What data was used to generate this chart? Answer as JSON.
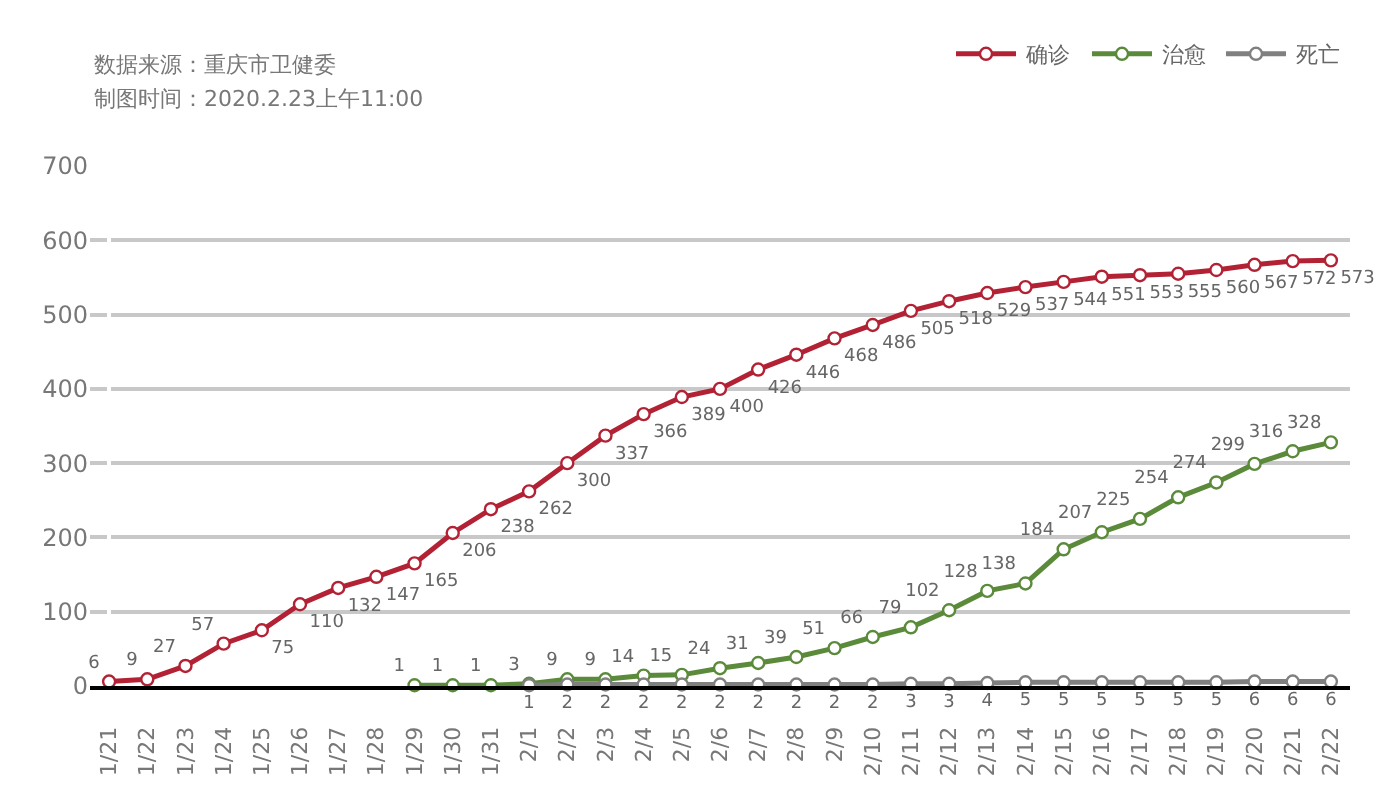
{
  "chart_data": {
    "type": "line",
    "annotations": [
      "数据来源：重庆市卫健委",
      "制图时间：2020.2.23上午11:00"
    ],
    "categories": [
      "1/21",
      "1/22",
      "1/23",
      "1/24",
      "1/25",
      "1/26",
      "1/27",
      "1/28",
      "1/29",
      "1/30",
      "1/31",
      "2/1",
      "2/2",
      "2/3",
      "2/4",
      "2/5",
      "2/6",
      "2/7",
      "2/8",
      "2/9",
      "2/10",
      "2/11",
      "2/12",
      "2/13",
      "2/14",
      "2/15",
      "2/16",
      "2/17",
      "2/18",
      "2/19",
      "2/20",
      "2/21",
      "2/22"
    ],
    "series": [
      {
        "name": "确诊",
        "color": "#b22234",
        "values": [
          6,
          9,
          27,
          57,
          75,
          110,
          132,
          147,
          165,
          206,
          238,
          262,
          300,
          337,
          366,
          389,
          400,
          426,
          446,
          468,
          486,
          505,
          518,
          529,
          537,
          544,
          551,
          553,
          555,
          560,
          567,
          572,
          573
        ]
      },
      {
        "name": "治愈",
        "color": "#5a8a3a",
        "values": [
          null,
          null,
          null,
          null,
          null,
          null,
          null,
          null,
          1,
          1,
          1,
          3,
          9,
          9,
          14,
          15,
          24,
          31,
          39,
          51,
          66,
          79,
          102,
          128,
          138,
          184,
          207,
          225,
          254,
          274,
          299,
          316,
          328
        ]
      },
      {
        "name": "死亡",
        "color": "#808080",
        "values": [
          null,
          null,
          null,
          null,
          null,
          null,
          null,
          null,
          null,
          null,
          null,
          1,
          2,
          2,
          2,
          2,
          2,
          2,
          2,
          2,
          2,
          3,
          3,
          4,
          5,
          5,
          5,
          5,
          5,
          5,
          6,
          6,
          6
        ]
      }
    ],
    "ylim": [
      0,
      700
    ],
    "yticks": [
      0,
      100,
      200,
      300,
      400,
      500,
      600,
      700
    ],
    "grid": "y",
    "legend": "top right",
    "marker": "circle",
    "line_style": "solid",
    "data_labels": true
  }
}
